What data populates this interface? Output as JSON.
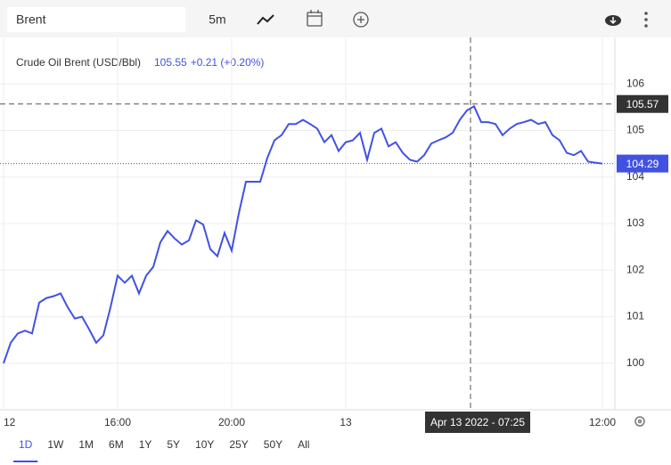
{
  "toolbar": {
    "search": "Brent",
    "interval": "5m"
  },
  "legend": {
    "price": 105.55,
    "change": "+0.21 (+0.20%)"
  },
  "chart_data": {
    "type": "line",
    "x": [
      0,
      1,
      2,
      3,
      4,
      5,
      6,
      7,
      8,
      9,
      10,
      11,
      12,
      13,
      14,
      15,
      16,
      17,
      18,
      19,
      20,
      21,
      22,
      23,
      24,
      25,
      26,
      27,
      28,
      29,
      30,
      31,
      32,
      33,
      34,
      35,
      36,
      37,
      38,
      39,
      40,
      41,
      42,
      43,
      44,
      45,
      46,
      47,
      48,
      49,
      50,
      51,
      52,
      53,
      54,
      55,
      56,
      57,
      58,
      59,
      60,
      61,
      62,
      63,
      64,
      65,
      66,
      67,
      68,
      69,
      70,
      71,
      72,
      73,
      74,
      75,
      76,
      77,
      78,
      79,
      80,
      81,
      82,
      83,
      84
    ],
    "series": [
      {
        "name": "Crude Oil Brent (USD/Bbl)",
        "color": "#4152e3",
        "values": [
          100.0,
          100.44,
          100.64,
          100.7,
          100.64,
          101.3,
          101.4,
          101.44,
          101.5,
          101.2,
          100.96,
          101.0,
          100.73,
          100.44,
          100.6,
          101.2,
          101.88,
          101.73,
          101.88,
          101.5,
          101.88,
          102.07,
          102.6,
          102.84,
          102.68,
          102.55,
          102.64,
          103.07,
          102.98,
          102.45,
          102.3,
          102.8,
          102.42,
          103.22,
          103.9,
          103.9,
          103.9,
          104.41,
          104.79,
          104.9,
          105.14,
          105.14,
          105.23,
          105.14,
          105.04,
          104.75,
          104.9,
          104.56,
          104.75,
          104.79,
          104.95,
          104.37,
          104.95,
          105.04,
          104.66,
          104.75,
          104.52,
          104.37,
          104.33,
          104.47,
          104.72,
          104.79,
          104.85,
          104.95,
          105.23,
          105.43,
          105.52,
          105.18,
          105.18,
          105.14,
          104.9,
          105.04,
          105.14,
          105.18,
          105.23,
          105.14,
          105.18,
          104.9,
          104.79,
          104.52,
          104.47,
          104.56,
          104.33,
          104.31,
          104.29
        ]
      }
    ],
    "xlim": [
      0,
      86
    ],
    "xticks": [
      {
        "value": 0,
        "label": "12"
      },
      {
        "value": 16,
        "label": "16:00"
      },
      {
        "value": 32,
        "label": "20:00"
      },
      {
        "value": 48,
        "label": "13"
      },
      {
        "value": 84,
        "label": "12:00"
      }
    ],
    "ylim": [
      99,
      107
    ],
    "yticks": [
      100,
      101,
      102,
      103,
      104,
      105,
      106
    ],
    "grid": true,
    "crosshair": {
      "x": 65.5,
      "y": 105.57,
      "x_label": "Apr 13 2022 - 07:25"
    },
    "last_value": 104.29
  },
  "ranges": [
    "1D",
    "1W",
    "1M",
    "6M",
    "1Y",
    "5Y",
    "10Y",
    "25Y",
    "50Y",
    "All"
  ]
}
